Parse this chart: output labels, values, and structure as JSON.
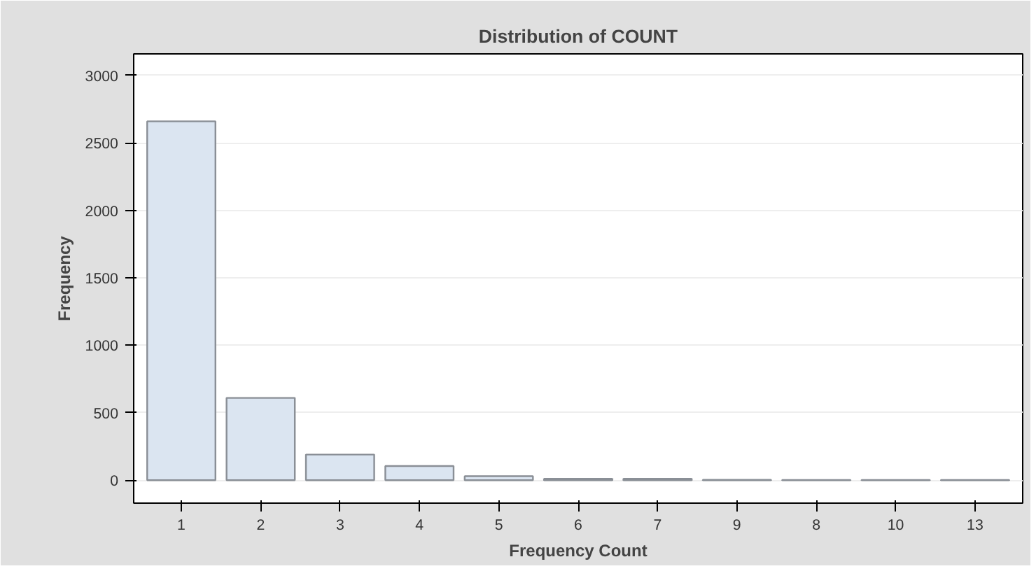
{
  "chart_data": {
    "type": "bar",
    "title": "Distribution of COUNT",
    "xlabel": "Frequency Count",
    "ylabel": "Frequency",
    "categories": [
      "1",
      "2",
      "3",
      "4",
      "5",
      "6",
      "7",
      "9",
      "8",
      "10",
      "13"
    ],
    "values": [
      2660,
      610,
      190,
      105,
      30,
      10,
      10,
      3,
      2,
      2,
      2
    ],
    "color": "#dbe5f1",
    "ylim": [
      -170,
      3160
    ],
    "yticks": [
      0,
      500,
      1000,
      1500,
      2000,
      2500,
      3000
    ],
    "grid": "y"
  }
}
